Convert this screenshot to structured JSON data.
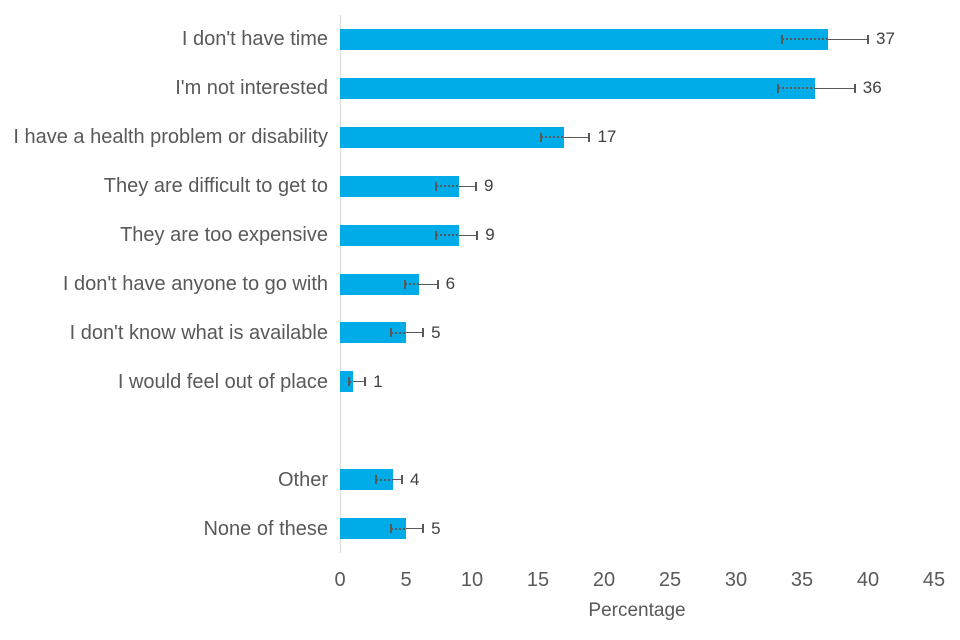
{
  "chart_data": {
    "type": "bar",
    "orientation": "horizontal",
    "title": "",
    "xlabel": "Percentage",
    "ylabel": "",
    "xlim": [
      0,
      45
    ],
    "xticks": [
      0,
      5,
      10,
      15,
      20,
      25,
      30,
      35,
      40,
      45
    ],
    "grid": "off",
    "legend": "none",
    "bar_color": "#00ACE8",
    "axis_line_color": "#D9D9D9",
    "error_bar_color": "#595959",
    "category_text_color": "#595959",
    "value_text_color": "#404040",
    "rows": [
      {
        "label": "I don't have time",
        "value": 37,
        "error_low": 33.5,
        "error_high": 40.0
      },
      {
        "label": "I'm not interested",
        "value": 36,
        "error_low": 33.2,
        "error_high": 39.0
      },
      {
        "label": "I have a health problem or disability",
        "value": 17,
        "error_low": 15.2,
        "error_high": 18.9
      },
      {
        "label": "They are difficult to get to",
        "value": 9,
        "error_low": 7.3,
        "error_high": 10.3
      },
      {
        "label": "They are too expensive",
        "value": 9,
        "error_low": 7.3,
        "error_high": 10.4
      },
      {
        "label": "I don't have anyone to go with",
        "value": 6,
        "error_low": 4.9,
        "error_high": 7.4
      },
      {
        "label": "I don't know what is available",
        "value": 5,
        "error_low": 3.9,
        "error_high": 6.3
      },
      {
        "label": "I would feel out of place",
        "value": 1,
        "error_low": 0.7,
        "error_high": 1.9
      },
      {
        "label": "",
        "value": null,
        "error_low": null,
        "error_high": null
      },
      {
        "label": "Other",
        "value": 4,
        "error_low": 2.7,
        "error_high": 4.7
      },
      {
        "label": "None of these",
        "value": 5,
        "error_low": 3.9,
        "error_high": 6.3
      }
    ]
  }
}
